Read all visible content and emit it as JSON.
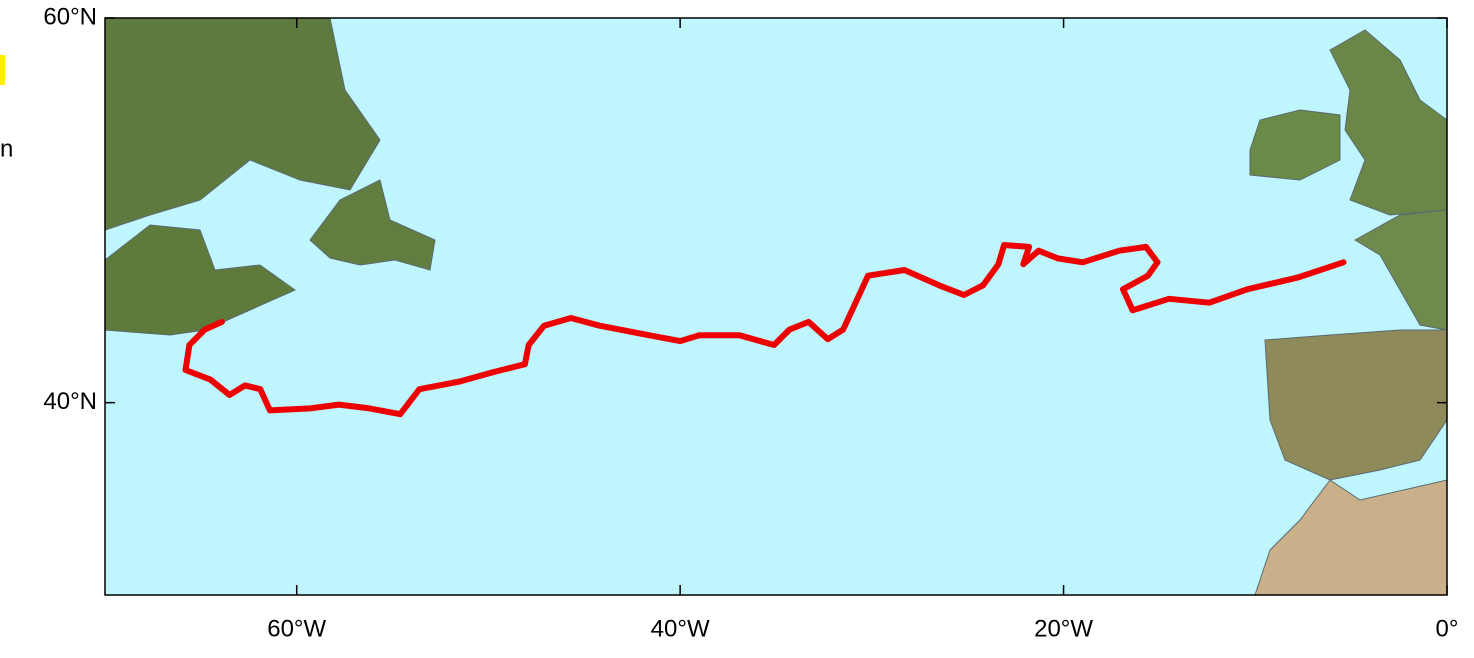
{
  "map": {
    "side_text": "n",
    "xlim": [
      -70,
      0
    ],
    "ylim": [
      30,
      60
    ],
    "xticks": [
      {
        "value": -60,
        "label": "60°W"
      },
      {
        "value": -40,
        "label": "40°W"
      },
      {
        "value": -20,
        "label": "20°W"
      },
      {
        "value": 0,
        "label": "0°"
      }
    ],
    "yticks": [
      {
        "value": 40,
        "label": "40°N"
      },
      {
        "value": 60,
        "label": "60°N"
      }
    ],
    "track": {
      "color": "#ee0000",
      "lon": [
        -5.4,
        -7.8,
        -10.4,
        -12.4,
        -14.5,
        -16.4,
        -16.9,
        -15.6,
        -15.1,
        -15.7,
        -17.1,
        -19.0,
        -20.3,
        -21.3,
        -22.1,
        -21.8,
        -23.1,
        -23.4,
        -24.2,
        -25.2,
        -26.5,
        -28.3,
        -30.2,
        -30.8,
        -31.5,
        -32.3,
        -33.3,
        -34.3,
        -35.1,
        -36.9,
        -39.0,
        -40.0,
        -41.6,
        -44.2,
        -45.7,
        -47.1,
        -47.9,
        -48.1,
        -49.7,
        -51.5,
        -53.6,
        -54.6,
        -56.2,
        -57.8,
        -59.3,
        -61.4,
        -61.9,
        -62.7,
        -63.5,
        -64.5,
        -65.8,
        -65.6,
        -64.8,
        -63.9
      ],
      "lat": [
        47.3,
        46.5,
        45.9,
        45.2,
        45.4,
        44.8,
        45.9,
        46.6,
        47.3,
        48.1,
        47.9,
        47.3,
        47.5,
        47.9,
        47.2,
        48.1,
        48.2,
        47.2,
        46.1,
        45.6,
        46.1,
        46.9,
        46.6,
        45.3,
        43.8,
        43.3,
        44.2,
        43.8,
        43.0,
        43.5,
        43.5,
        43.2,
        43.5,
        44.0,
        44.4,
        44.0,
        43.0,
        42.0,
        41.6,
        41.1,
        40.7,
        39.4,
        39.7,
        39.9,
        39.7,
        39.6,
        40.7,
        40.9,
        40.4,
        41.2,
        41.7,
        43.0,
        43.8,
        44.2
      ]
    }
  }
}
